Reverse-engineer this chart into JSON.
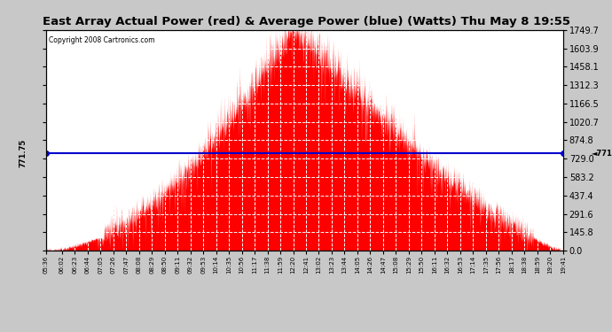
{
  "title": "East Array Actual Power (red) & Average Power (blue) (Watts) Thu May 8 19:55",
  "copyright": "Copyright 2008 Cartronics.com",
  "avg_power": 771.75,
  "y_max": 1749.7,
  "y_min": 0.0,
  "yticks": [
    0.0,
    145.8,
    291.6,
    437.4,
    583.2,
    729.0,
    874.8,
    1020.7,
    1166.5,
    1312.3,
    1458.1,
    1603.9,
    1749.7
  ],
  "bg_color": "#ffffff",
  "plot_bg": "#ffffff",
  "fill_color": "#ff0000",
  "line_color": "#0000cc",
  "grid_color": "#c8c8c8",
  "outer_bg": "#c8c8c8",
  "xtick_labels": [
    "05:36",
    "06:02",
    "06:23",
    "06:44",
    "07:05",
    "07:26",
    "07:47",
    "08:08",
    "08:29",
    "08:50",
    "09:11",
    "09:32",
    "09:53",
    "10:14",
    "10:35",
    "10:56",
    "11:17",
    "11:38",
    "11:59",
    "12:20",
    "12:41",
    "13:02",
    "13:23",
    "13:44",
    "14:05",
    "14:26",
    "14:47",
    "15:08",
    "15:29",
    "15:50",
    "16:11",
    "16:32",
    "16:53",
    "17:14",
    "17:35",
    "17:56",
    "18:17",
    "18:38",
    "18:59",
    "19:20",
    "19:41"
  ],
  "xtick_minutes": [
    336,
    362,
    383,
    404,
    425,
    446,
    467,
    488,
    509,
    530,
    551,
    572,
    593,
    614,
    635,
    656,
    677,
    698,
    719,
    740,
    761,
    782,
    803,
    824,
    845,
    866,
    887,
    908,
    929,
    950,
    971,
    992,
    1013,
    1034,
    1055,
    1076,
    1097,
    1118,
    1139,
    1160,
    1181
  ],
  "x_start_minutes": 336,
  "x_end_minutes": 1181,
  "peak_minute": 740,
  "peak_power": 1749.7,
  "rise_start": 336,
  "rise_steep_start": 530,
  "fall_end": 1175
}
